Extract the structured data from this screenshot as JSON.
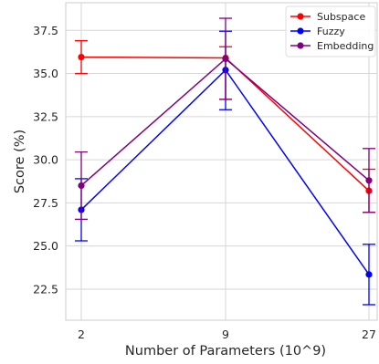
{
  "chart_data": {
    "type": "line",
    "title": "",
    "xlabel": "Number of Parameters (10^9)",
    "ylabel": "Score (%)",
    "categories": [
      "2",
      "9",
      "27"
    ],
    "ylim": [
      20.7,
      39.1
    ],
    "yticks": [
      22.5,
      25.0,
      27.5,
      30.0,
      32.5,
      35.0,
      37.5
    ],
    "ytick_labels": [
      "22.5",
      "25.0",
      "27.5",
      "30.0",
      "32.5",
      "35.0",
      "37.5"
    ],
    "grid": true,
    "legend_position": "top-right",
    "series": [
      {
        "name": "Subspace",
        "color": "#ff0000",
        "values": [
          35.95,
          35.9,
          28.2
        ],
        "err_low": [
          35.0,
          33.5,
          26.95
        ],
        "err_high": [
          36.9,
          36.55,
          29.45
        ]
      },
      {
        "name": "Fuzzy",
        "color": "#0000ff",
        "values": [
          27.1,
          35.2,
          23.35
        ],
        "err_low": [
          25.3,
          32.9,
          21.6
        ],
        "err_high": [
          28.9,
          37.45,
          25.1
        ]
      },
      {
        "name": "Embedding",
        "color": "#800080",
        "values": [
          28.5,
          35.85,
          28.8
        ],
        "err_low": [
          26.55,
          33.5,
          26.95
        ],
        "err_high": [
          30.45,
          38.2,
          30.65
        ]
      }
    ]
  }
}
